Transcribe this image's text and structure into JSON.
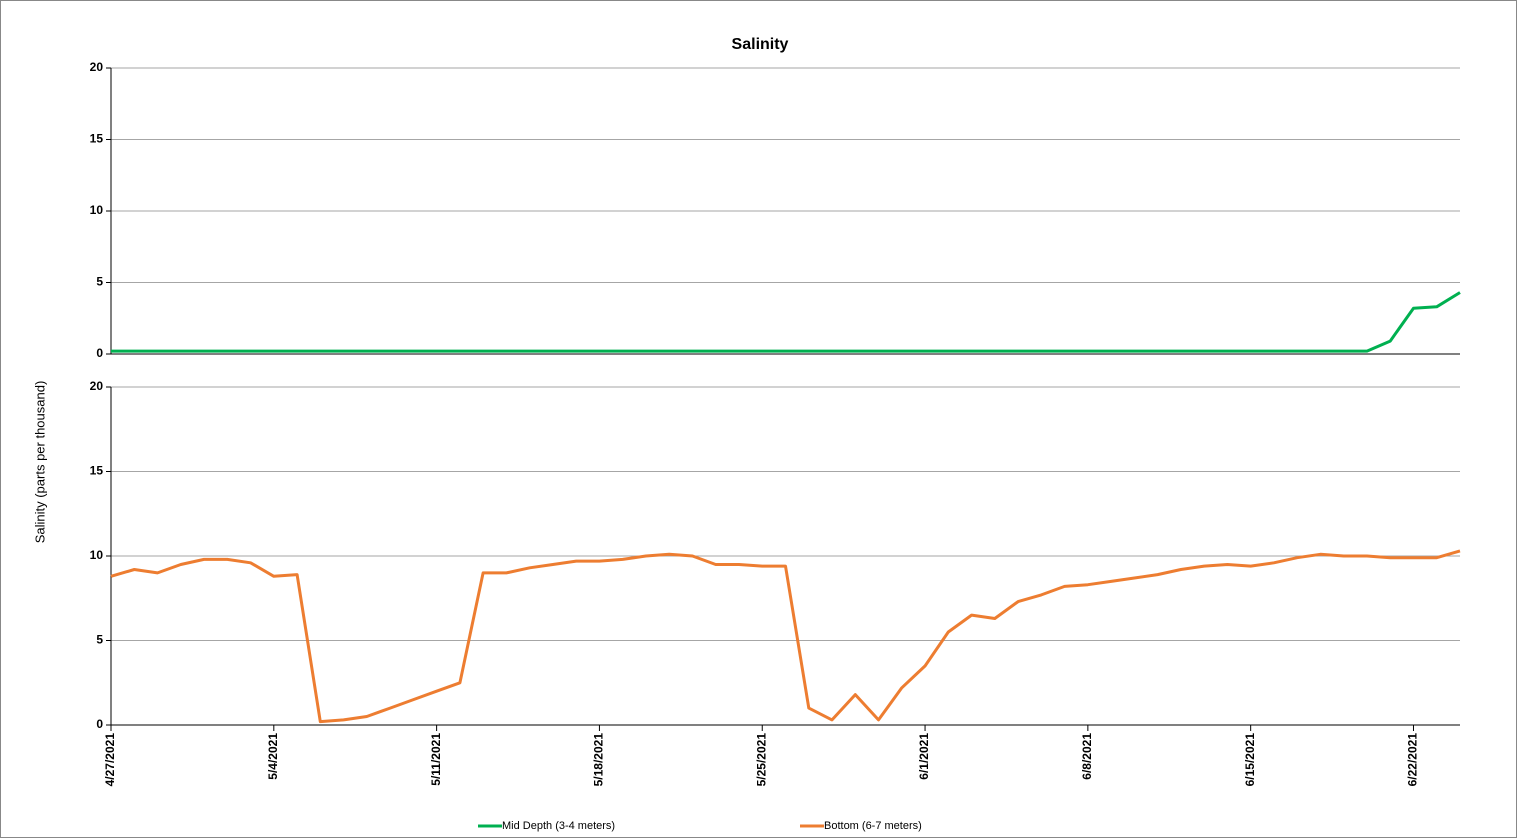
{
  "chart_data": [
    {
      "type": "line",
      "title": "Salinity",
      "ylabel": "Salinity (parts per thousand)",
      "x": [
        "4/27/2021",
        "4/28/2021",
        "4/29/2021",
        "4/30/2021",
        "5/1/2021",
        "5/2/2021",
        "5/3/2021",
        "5/4/2021",
        "5/5/2021",
        "5/6/2021",
        "5/7/2021",
        "5/8/2021",
        "5/9/2021",
        "5/10/2021",
        "5/11/2021",
        "5/12/2021",
        "5/13/2021",
        "5/14/2021",
        "5/15/2021",
        "5/16/2021",
        "5/17/2021",
        "5/18/2021",
        "5/19/2021",
        "5/20/2021",
        "5/21/2021",
        "5/22/2021",
        "5/23/2021",
        "5/24/2021",
        "5/25/2021",
        "5/26/2021",
        "5/27/2021",
        "5/28/2021",
        "5/29/2021",
        "5/30/2021",
        "5/31/2021",
        "6/1/2021",
        "6/2/2021",
        "6/3/2021",
        "6/4/2021",
        "6/5/2021",
        "6/6/2021",
        "6/7/2021",
        "6/8/2021",
        "6/9/2021",
        "6/10/2021",
        "6/11/2021",
        "6/12/2021",
        "6/13/2021",
        "6/14/2021",
        "6/15/2021",
        "6/16/2021",
        "6/17/2021",
        "6/18/2021",
        "6/19/2021",
        "6/20/2021",
        "6/21/2021",
        "6/22/2021",
        "6/23/2021",
        "6/24/2021"
      ],
      "series": [
        {
          "name": "Mid Depth (3-4 meters)",
          "color": "#00b050",
          "values": [
            0.2,
            0.2,
            0.2,
            0.2,
            0.2,
            0.2,
            0.2,
            0.2,
            0.2,
            0.2,
            0.2,
            0.2,
            0.2,
            0.2,
            0.2,
            0.2,
            0.2,
            0.2,
            0.2,
            0.2,
            0.2,
            0.2,
            0.2,
            0.2,
            0.2,
            0.2,
            0.2,
            0.2,
            0.2,
            0.2,
            0.2,
            0.2,
            0.2,
            0.2,
            0.2,
            0.2,
            0.2,
            0.2,
            0.2,
            0.2,
            0.2,
            0.2,
            0.2,
            0.2,
            0.2,
            0.2,
            0.2,
            0.2,
            0.2,
            0.2,
            0.2,
            0.2,
            0.2,
            0.2,
            0.2,
            0.9,
            3.2,
            3.3,
            4.3
          ]
        }
      ],
      "xlim": [
        "4/27/2021",
        "6/24/2021"
      ],
      "ylim": [
        0,
        20
      ],
      "yticks": [
        0,
        5,
        10,
        15,
        20
      ],
      "grid": true
    },
    {
      "type": "line",
      "x": [
        "4/27/2021",
        "4/28/2021",
        "4/29/2021",
        "4/30/2021",
        "5/1/2021",
        "5/2/2021",
        "5/3/2021",
        "5/4/2021",
        "5/5/2021",
        "5/6/2021",
        "5/7/2021",
        "5/8/2021",
        "5/9/2021",
        "5/10/2021",
        "5/11/2021",
        "5/12/2021",
        "5/13/2021",
        "5/14/2021",
        "5/15/2021",
        "5/16/2021",
        "5/17/2021",
        "5/18/2021",
        "5/19/2021",
        "5/20/2021",
        "5/21/2021",
        "5/22/2021",
        "5/23/2021",
        "5/24/2021",
        "5/25/2021",
        "5/26/2021",
        "5/27/2021",
        "5/28/2021",
        "5/29/2021",
        "5/30/2021",
        "5/31/2021",
        "6/1/2021",
        "6/2/2021",
        "6/3/2021",
        "6/4/2021",
        "6/5/2021",
        "6/6/2021",
        "6/7/2021",
        "6/8/2021",
        "6/9/2021",
        "6/10/2021",
        "6/11/2021",
        "6/12/2021",
        "6/13/2021",
        "6/14/2021",
        "6/15/2021",
        "6/16/2021",
        "6/17/2021",
        "6/18/2021",
        "6/19/2021",
        "6/20/2021",
        "6/21/2021",
        "6/22/2021",
        "6/23/2021",
        "6/24/2021"
      ],
      "series": [
        {
          "name": "Bottom (6-7 meters)",
          "color": "#ed7d31",
          "values": [
            8.8,
            9.2,
            9.0,
            9.5,
            9.8,
            9.8,
            9.6,
            8.8,
            8.9,
            0.2,
            0.3,
            0.5,
            1.0,
            1.5,
            2.0,
            2.5,
            9.0,
            9.0,
            9.3,
            9.5,
            9.7,
            9.7,
            9.8,
            10.0,
            10.1,
            10.0,
            9.5,
            9.5,
            9.4,
            9.4,
            1.0,
            0.3,
            1.8,
            0.3,
            2.2,
            3.5,
            5.5,
            6.5,
            6.3,
            7.3,
            7.7,
            8.2,
            8.3,
            8.5,
            8.7,
            8.9,
            9.2,
            9.4,
            9.5,
            9.4,
            9.6,
            9.9,
            10.1,
            10.0,
            10.0,
            9.9,
            9.9,
            9.9,
            10.3
          ]
        }
      ],
      "xlim": [
        "4/27/2021",
        "6/24/2021"
      ],
      "ylim": [
        0,
        20
      ],
      "yticks": [
        0,
        5,
        10,
        15,
        20
      ],
      "xticks": [
        "4/27/2021",
        "5/4/2021",
        "5/11/2021",
        "5/18/2021",
        "5/25/2021",
        "6/1/2021",
        "6/8/2021",
        "6/15/2021",
        "6/22/2021"
      ],
      "grid": true
    }
  ]
}
